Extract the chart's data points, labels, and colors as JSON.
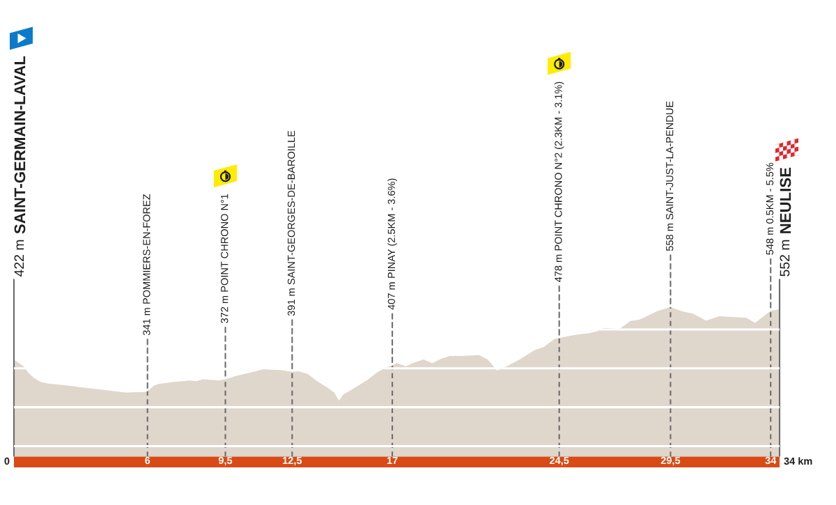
{
  "chart_data": {
    "type": "area",
    "x": [
      0,
      0.4,
      0.7,
      0.9,
      1.2,
      1.5,
      2.4,
      3.2,
      4.1,
      5.0,
      5.9,
      6,
      6.3,
      6.5,
      7.2,
      7.9,
      8.2,
      8.5,
      9.2,
      9.5,
      10.0,
      10.9,
      11.2,
      11.7,
      11.9,
      12.5,
      12.8,
      13.2,
      13.6,
      14.1,
      14.4,
      14.6,
      14.8,
      15.0,
      15.4,
      15.9,
      16.3,
      16.7,
      17,
      17.2,
      17.6,
      17.9,
      18.4,
      18.8,
      19.2,
      19.6,
      20.1,
      20.9,
      21.3,
      21.7,
      22.1,
      22.7,
      23.4,
      23.8,
      24.3,
      24.5,
      25.2,
      25.8,
      26.2,
      26.5,
      27.2,
      27.7,
      28.1,
      28.9,
      29.5,
      30.0,
      30.5,
      31.1,
      31.7,
      32.9,
      33.3,
      34,
      34.4
    ],
    "values": [
      422,
      407,
      386,
      375,
      365,
      361,
      356,
      350,
      344,
      338,
      339,
      341,
      356,
      360,
      365,
      369,
      367,
      372,
      369,
      372,
      381,
      393,
      398,
      396,
      396,
      391,
      392,
      386,
      368,
      350,
      337,
      317,
      333,
      339,
      353,
      371,
      389,
      402,
      407,
      414,
      405,
      413,
      423,
      413,
      425,
      432,
      432,
      434,
      422,
      395,
      404,
      422,
      447,
      455,
      476,
      478,
      486,
      490,
      495,
      504,
      501,
      522,
      525,
      547,
      558,
      547,
      541,
      523,
      534,
      530,
      517,
      548,
      552
    ],
    "value_labels": [
      "422 m",
      null,
      null,
      null,
      null,
      null,
      null,
      null,
      null,
      null,
      null,
      "341 m",
      null,
      null,
      null,
      null,
      null,
      null,
      null,
      "372 m",
      null,
      null,
      null,
      null,
      null,
      "391 m",
      null,
      null,
      null,
      null,
      null,
      null,
      null,
      null,
      null,
      null,
      null,
      null,
      "407 m",
      null,
      null,
      null,
      null,
      null,
      null,
      null,
      null,
      null,
      null,
      null,
      null,
      null,
      null,
      null,
      null,
      "478 m",
      null,
      null,
      null,
      null,
      null,
      null,
      null,
      null,
      "558 m",
      null,
      null,
      null,
      null,
      null,
      null,
      "548 m",
      "552 m"
    ],
    "color": "#dfd6cc",
    "xlim": [
      0,
      34.4
    ],
    "ylim": [
      173,
      630
    ],
    "xticks": [
      6,
      {
        "value": 9.5,
        "label": "9,5"
      },
      {
        "value": 12.5,
        "label": "12,5"
      },
      17,
      {
        "value": 24.5,
        "label": "24,5"
      },
      {
        "value": 29.5,
        "label": "29,5"
      },
      34
    ],
    "yticks": [
      {
        "value": 200,
        "label": null
      },
      {
        "value": 300,
        "label": null
      },
      {
        "value": 400,
        "label": null
      },
      {
        "value": 500,
        "label": null
      }
    ],
    "tick_labels": "x",
    "grid": true,
    "annotations": [
      "0",
      "34 km",
      "SAINT-GERMAIN-LAVAL",
      "POMMIERS-EN-FOREZ",
      "POINT CHRONO N°1",
      "SAINT-GEORGES-DE-BAROILLE",
      "PINAY (2.5KM - 3.6%)",
      "POINT CHRONO N°2 (2.3KM - 3.1%)",
      "SAINT-JUST-LA-PENDUE",
      "0.5KM - 5.5%",
      "NEULISE"
    ]
  }
}
